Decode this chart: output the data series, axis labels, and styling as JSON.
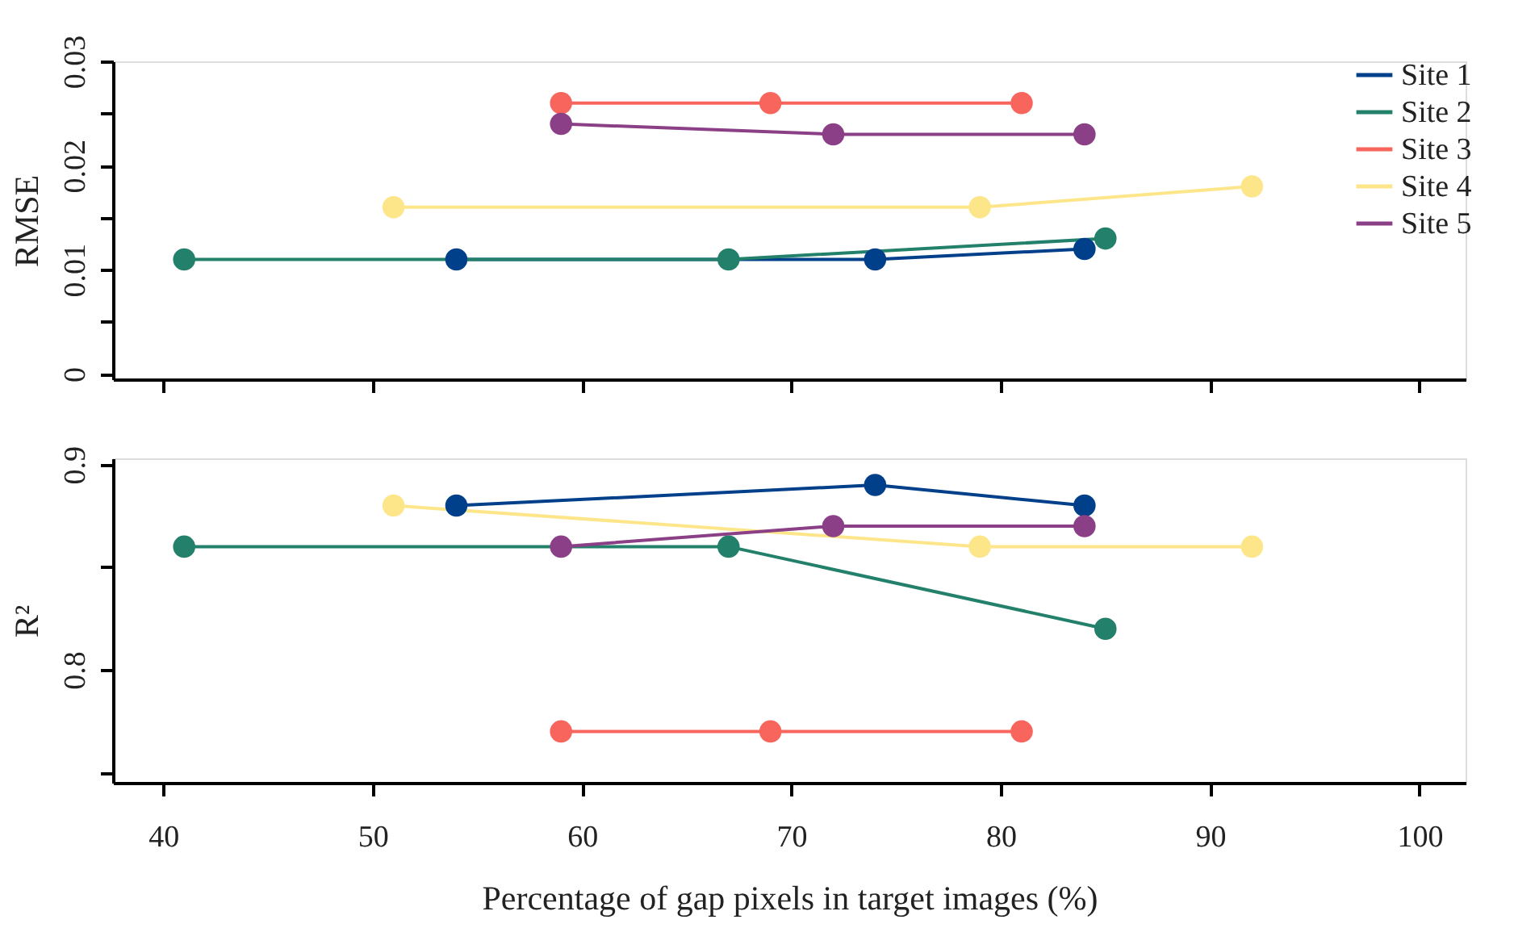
{
  "chart_data": [
    {
      "type": "line",
      "ylabel": "RMSE",
      "marker": "circle",
      "line_style": "solid",
      "legend": "top right",
      "grid": false,
      "tick_labels": "y",
      "xlim": [
        37.6,
        102.2
      ],
      "xticks": [
        {
          "value": 40,
          "label": null
        },
        {
          "value": 50,
          "label": null
        },
        {
          "value": 60,
          "label": null
        },
        {
          "value": 70,
          "label": null
        },
        {
          "value": 80,
          "label": null
        },
        {
          "value": 90,
          "label": null
        },
        {
          "value": 100,
          "label": null
        }
      ],
      "ylim": [
        -0.0005,
        0.03
      ],
      "yticks": [
        0,
        {
          "value": 0.005,
          "label": null
        },
        0.01,
        {
          "value": 0.015,
          "label": null
        },
        0.02,
        {
          "value": 0.025,
          "label": null
        },
        0.03
      ],
      "series": [
        {
          "name": "Site 1",
          "color": "#003f8a",
          "x": [
            54,
            74,
            84
          ],
          "values": [
            0.011,
            0.011,
            0.012
          ]
        },
        {
          "name": "Site 2",
          "color": "#23806a",
          "x": [
            41,
            67,
            85
          ],
          "values": [
            0.011,
            0.011,
            0.013
          ]
        },
        {
          "name": "Site 3",
          "color": "#f8655d",
          "x": [
            59,
            69,
            81
          ],
          "values": [
            0.026,
            0.026,
            0.026
          ]
        },
        {
          "name": "Site 4",
          "color": "#fde68a",
          "x": [
            51,
            79,
            92
          ],
          "values": [
            0.016,
            0.016,
            0.018
          ]
        },
        {
          "name": "Site 5",
          "color": "#8b3f86",
          "x": [
            59,
            72,
            84
          ],
          "values": [
            0.024,
            0.023,
            0.023
          ]
        }
      ]
    },
    {
      "type": "line",
      "ylabel": "R²",
      "xlabel": "Percentage of gap pixels in target images (%)",
      "marker": "circle",
      "line_style": "solid",
      "grid": false,
      "xlim": [
        37.6,
        102.2
      ],
      "xticks": [
        40,
        50,
        60,
        70,
        80,
        90,
        100
      ],
      "ylim": [
        0.745,
        0.903
      ],
      "yticks": [
        {
          "value": 0.75,
          "label": null
        },
        0.8,
        {
          "value": 0.85,
          "label": null
        },
        0.9
      ],
      "series": [
        {
          "color": "#003f8a",
          "x": [
            54,
            74,
            84
          ],
          "values": [
            0.88,
            0.89,
            0.88
          ]
        },
        {
          "color": "#23806a",
          "x": [
            41,
            67,
            85
          ],
          "values": [
            0.86,
            0.86,
            0.82
          ]
        },
        {
          "color": "#f8655d",
          "x": [
            59,
            69,
            81
          ],
          "values": [
            0.77,
            0.77,
            0.77
          ]
        },
        {
          "color": "#fde68a",
          "x": [
            51,
            79,
            92
          ],
          "values": [
            0.88,
            0.86,
            0.86
          ]
        },
        {
          "color": "#8b3f86",
          "x": [
            59,
            72,
            84
          ],
          "values": [
            0.86,
            0.87,
            0.87
          ]
        }
      ]
    }
  ]
}
